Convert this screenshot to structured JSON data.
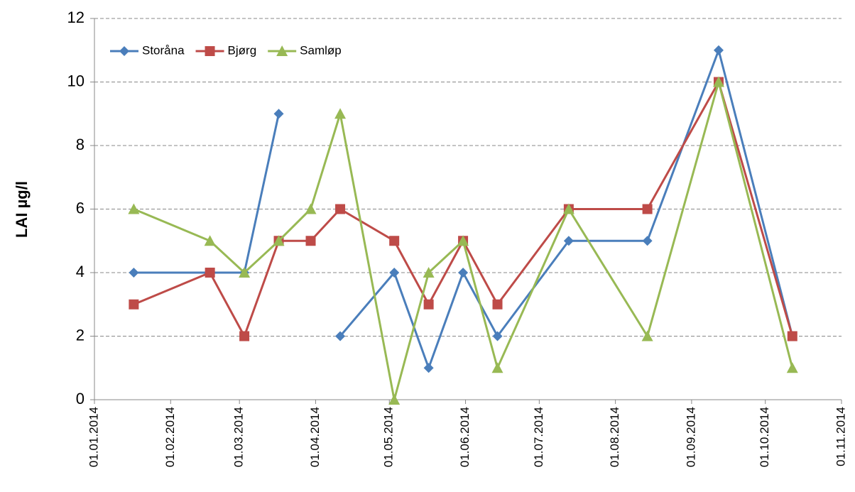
{
  "chart_data": {
    "type": "line",
    "y_label": "LAI µg/l",
    "x": [
      "17.01.2014",
      "17.02.2014",
      "03.03.2014",
      "17.03.2014",
      "30.03.2014",
      "11.04.2014",
      "03.05.2014",
      "17.05.2014",
      "31.05.2014",
      "14.06.2014",
      "13.07.2014",
      "14.08.2014",
      "12.09.2014",
      "12.10.2014"
    ],
    "series": [
      {
        "name": "Storåna",
        "color": "#4a7ebb",
        "marker": "diamond",
        "values": [
          4,
          4,
          4,
          9,
          null,
          2,
          4,
          1,
          4,
          2,
          5,
          5,
          11,
          2
        ]
      },
      {
        "name": "Bjørg",
        "color": "#be4b48",
        "marker": "square",
        "values": [
          3,
          4,
          2,
          5,
          5,
          6,
          5,
          3,
          5,
          3,
          6,
          6,
          10,
          2
        ]
      },
      {
        "name": "Samløp",
        "color": "#98b954",
        "marker": "triangle",
        "values": [
          6,
          5,
          4,
          5,
          6,
          9,
          0,
          4,
          5,
          1,
          6,
          2,
          10,
          1
        ]
      }
    ],
    "xlim": [
      "01.01.2014",
      "01.11.2014"
    ],
    "xticks": [
      "01.01.2014",
      "01.02.2014",
      "01.03.2014",
      "01.04.2014",
      "01.05.2014",
      "01.06.2014",
      "01.07.2014",
      "01.08.2014",
      "01.09.2014",
      "01.10.2014",
      "01.11.2014"
    ],
    "ylim": [
      0,
      12
    ],
    "yticks": [
      0,
      2,
      4,
      6,
      8,
      10,
      12
    ],
    "grid": true,
    "legend": "top-left"
  }
}
